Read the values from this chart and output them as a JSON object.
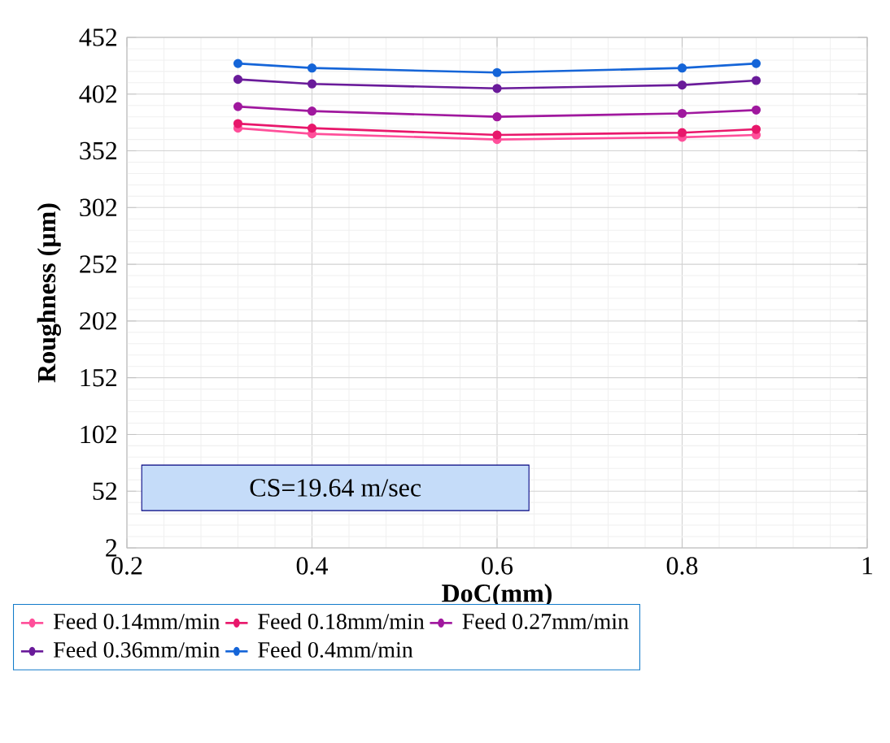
{
  "chart_data": {
    "type": "line",
    "xlabel": "DoC(mm)",
    "ylabel": "Roughness (µm)",
    "x": [
      0.32,
      0.4,
      0.6,
      0.8,
      0.88
    ],
    "series": [
      {
        "name": "Feed 0.14mm/min",
        "color": "#ff4f9a",
        "values": [
          372,
          367,
          362,
          364,
          366
        ]
      },
      {
        "name": "Feed 0.18mm/min",
        "color": "#e8176b",
        "values": [
          376,
          372,
          366,
          368,
          371
        ]
      },
      {
        "name": "Feed 0.27mm/min",
        "color": "#a0189e",
        "values": [
          391,
          387,
          382,
          385,
          388
        ]
      },
      {
        "name": "Feed 0.36mm/min",
        "color": "#6a1b9a",
        "values": [
          415,
          411,
          407,
          410,
          414
        ]
      },
      {
        "name": "Feed 0.4mm/min",
        "color": "#1565d8",
        "values": [
          429,
          425,
          421,
          425,
          429
        ]
      }
    ],
    "xlim": [
      0.2,
      1
    ],
    "xticks": [
      0.2,
      0.4,
      0.6,
      0.8,
      1
    ],
    "ylim": [
      2,
      452
    ],
    "yticks": [
      2,
      52,
      102,
      152,
      202,
      252,
      302,
      352,
      402,
      452
    ],
    "annotations": [
      "CS=19.64 m/sec"
    ],
    "grid": true,
    "legend": "bottom",
    "marker": "circle",
    "line_style": "solid"
  }
}
